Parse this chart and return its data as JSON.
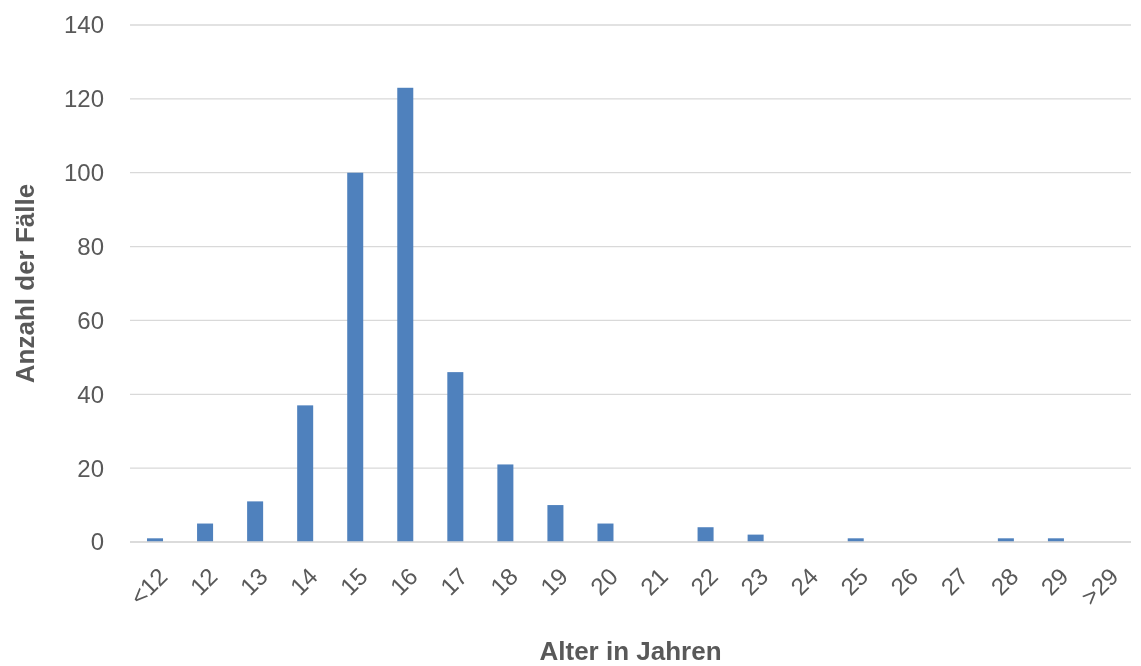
{
  "chart_data": {
    "type": "bar",
    "xlabel": "Alter in Jahren",
    "ylabel": "Anzahl der Fälle",
    "categories": [
      "<12",
      "12",
      "13",
      "14",
      "15",
      "16",
      "17",
      "18",
      "19",
      "20",
      "21",
      "22",
      "23",
      "24",
      "25",
      "26",
      "27",
      "28",
      "29",
      ">29"
    ],
    "values": [
      1,
      5,
      11,
      37,
      100,
      123,
      46,
      21,
      10,
      5,
      0,
      4,
      2,
      0,
      1,
      0,
      0,
      1,
      1,
      0
    ],
    "color": "#4f81bd",
    "ylim": [
      0,
      140
    ],
    "yticks": [
      0,
      20,
      40,
      60,
      80,
      100,
      120,
      140
    ],
    "grid": "y"
  }
}
